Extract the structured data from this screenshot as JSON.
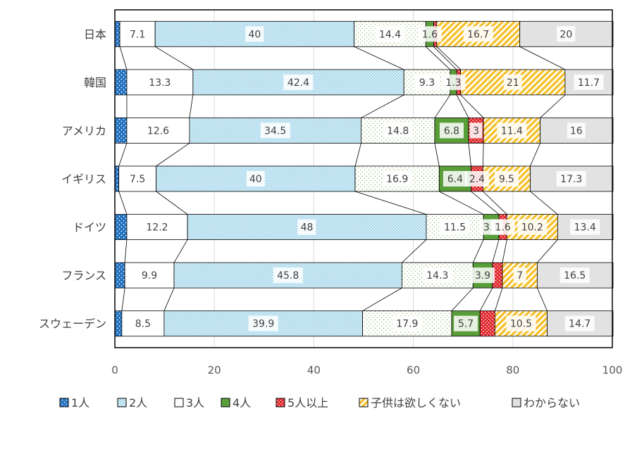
{
  "chart_data": {
    "type": "bar",
    "orientation": "horizontal",
    "stacked": true,
    "categories": [
      "日本",
      "韓国",
      "アメリカ",
      "イギリス",
      "ドイツ",
      "フランス",
      "スウェーデン"
    ],
    "series": [
      {
        "name": "1人",
        "values": [
          1.0,
          2.4,
          2.4,
          0.8,
          2.4,
          2.0,
          1.4
        ],
        "color": "#1f6fbf",
        "pattern": "dots"
      },
      {
        "name": "2人",
        "values": [
          7.1,
          13.3,
          12.6,
          7.5,
          12.2,
          9.9,
          8.5
        ],
        "color": "#ffffff",
        "pattern": "solid"
      },
      {
        "name": "3人",
        "values": [
          40,
          42.4,
          34.5,
          40,
          48,
          45.8,
          39.9
        ],
        "color": "#d6eef8",
        "pattern": "lightdots"
      },
      {
        "name": "4人",
        "values": [
          14.4,
          9.3,
          14.8,
          16.9,
          11.5,
          14.3,
          17.9
        ],
        "color": "#ffffff",
        "pattern": "greendots"
      },
      {
        "name": "5人以上",
        "values": [
          1.6,
          1.3,
          6.8,
          6.4,
          3.1,
          3.9,
          5.7
        ],
        "color": "#5a9e3a",
        "pattern": "solid"
      },
      {
        "name": "子供は欲しくない",
        "values": [
          0.6,
          0.8,
          3.0,
          2.4,
          1.6,
          2.0,
          3.0
        ],
        "color": "#e0242a",
        "pattern": "whitedots"
      },
      {
        "name": "わからない",
        "values": [
          16.7,
          21,
          11.4,
          9.5,
          10.2,
          7,
          10.5
        ],
        "color": "#f5c230",
        "pattern": "hatch"
      }
    ],
    "tail_values": [
      20,
      11.7,
      16,
      17.3,
      13.4,
      16.5,
      14.7
    ],
    "data_labels": [
      [
        "7.1",
        "40",
        "14.4",
        "1.6",
        "16.7",
        "20"
      ],
      [
        "13.3",
        "42.4",
        "9.3",
        "1.3",
        "21",
        "11.7"
      ],
      [
        "12.6",
        "34.5",
        "14.8",
        "6.8",
        "3",
        "11.4",
        "16"
      ],
      [
        "7.5",
        "40",
        "16.9",
        "6.4",
        "2.4",
        "9.5",
        "17.3"
      ],
      [
        "12.2",
        "48",
        "11.5",
        "3.1",
        "1.6",
        "10.2",
        "13.4"
      ],
      [
        "9.9",
        "45.8",
        "14.3",
        "3.9",
        "7",
        "16.5"
      ],
      [
        "8.5",
        "39.9",
        "17.9",
        "5.7",
        "10.5",
        "14.7"
      ]
    ],
    "xaxis": {
      "min": 0,
      "max": 100,
      "ticks": [
        "0",
        "20",
        "40",
        "60",
        "80",
        "100"
      ]
    },
    "legend": {
      "position": "bottom",
      "entries": [
        "1人",
        "2人",
        "3人",
        "4人",
        "5人以上",
        "子供は欲しくない",
        "わからない"
      ]
    },
    "grid": true,
    "series_lines": true
  }
}
